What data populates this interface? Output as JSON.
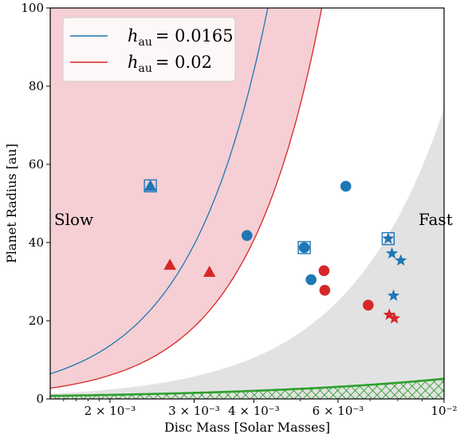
{
  "chart_data": {
    "type": "scatter",
    "xscale": "log",
    "xlim": [
      0.0015,
      0.01
    ],
    "ylim": [
      0,
      100
    ],
    "xlabel": "Disc Mass [Solar Masses]",
    "ylabel": "Planet Radius [au]",
    "xticks": [
      {
        "value": 0.002,
        "label": "2 × 10⁻³"
      },
      {
        "value": 0.003,
        "label": "3 × 10⁻³"
      },
      {
        "value": 0.004,
        "label": "4 × 10⁻³"
      },
      {
        "value": 0.006,
        "label": "6 × 10⁻³"
      },
      {
        "value": 0.01,
        "label": "10⁻²"
      }
    ],
    "yticks": [
      0,
      20,
      40,
      60,
      80,
      100
    ],
    "grid": false,
    "legend": {
      "placement": "top-left",
      "entries": [
        {
          "label_base": "h",
          "label_sub": "au",
          "label_value": "= 0.0165",
          "color": "#1f77b4"
        },
        {
          "label_base": "h",
          "label_sub": "au",
          "label_value": "= 0.02",
          "color": "#d62728"
        }
      ]
    },
    "annotations": [
      {
        "text": "Slow",
        "x": 0.00168,
        "y": 44.5
      },
      {
        "text": "Fast",
        "x": 0.0096,
        "y": 44.5
      }
    ],
    "regions": [
      {
        "name": "slow-blue",
        "fill": "#c9b7c4",
        "boundary": {
          "x0": 0.00155,
          "y0": 7,
          "k": 2.62
        }
      },
      {
        "name": "slow-red",
        "fill": "#f5cfd3",
        "boundary": {
          "x0": 0.00155,
          "y0": 3,
          "k": 2.75
        }
      },
      {
        "name": "fast-grey",
        "fill": "#e2e2e2",
        "boundary": {
          "x0": 0.0016,
          "y0": 1.5,
          "k": 2.13
        }
      },
      {
        "name": "hatched-floor",
        "stroke": "#2ca02c",
        "boundary": {
          "x0": 0.00155,
          "y0": 0.8,
          "k": 1.0
        }
      }
    ],
    "curves": [
      {
        "name": "blue-curve",
        "color": "#1f77b4",
        "x0": 0.00155,
        "y0": 7,
        "k": 2.62
      },
      {
        "name": "red-curve",
        "color": "#d62728",
        "x0": 0.00155,
        "y0": 3,
        "k": 2.75
      },
      {
        "name": "green-curve",
        "color": "#2ca02c",
        "x0": 0.00155,
        "y0": 0.8,
        "k": 1.0
      }
    ],
    "series": [
      {
        "marker": "triangle",
        "color": "#1f77b4",
        "points": [
          [
            0.00243,
            54.5
          ]
        ]
      },
      {
        "marker": "triangle",
        "color": "#d62728",
        "points": [
          [
            0.00267,
            34.3
          ],
          [
            0.00323,
            32.5
          ]
        ]
      },
      {
        "marker": "circle",
        "color": "#1f77b4",
        "points": [
          [
            0.00387,
            41.8
          ],
          [
            0.0051,
            38.7
          ],
          [
            0.00527,
            30.5
          ],
          [
            0.00623,
            54.4
          ]
        ]
      },
      {
        "marker": "circle",
        "color": "#d62728",
        "points": [
          [
            0.00561,
            32.8
          ],
          [
            0.00563,
            27.8
          ],
          [
            0.00694,
            24
          ]
        ]
      },
      {
        "marker": "star",
        "color": "#1f77b4",
        "points": [
          [
            0.00764,
            41
          ],
          [
            0.00778,
            37.2
          ],
          [
            0.00812,
            35.4
          ],
          [
            0.00784,
            26.4
          ]
        ]
      },
      {
        "marker": "star",
        "color": "#d62728",
        "points": [
          [
            0.00768,
            21.5
          ],
          [
            0.00787,
            20.6
          ]
        ]
      },
      {
        "marker": "open-square",
        "color": "#1f77b4",
        "points": [
          [
            0.00243,
            54.5
          ],
          [
            0.0051,
            38.7
          ],
          [
            0.00764,
            41
          ]
        ]
      }
    ]
  }
}
